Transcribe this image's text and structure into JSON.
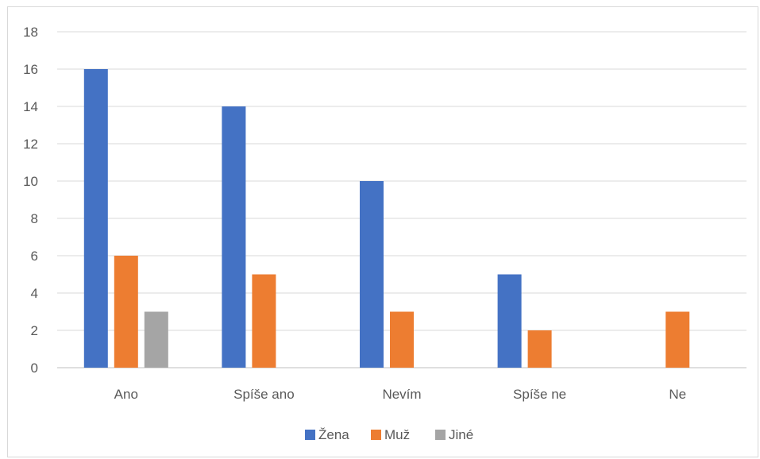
{
  "chart_data": {
    "type": "bar",
    "categories": [
      "Ano",
      "Spíše ano",
      "Nevím",
      "Spíše ne",
      "Ne"
    ],
    "series": [
      {
        "name": "Žena",
        "color": "#4472C4",
        "values": [
          16,
          14,
          10,
          5,
          0
        ]
      },
      {
        "name": "Muž",
        "color": "#ED7D31",
        "values": [
          6,
          5,
          3,
          2,
          3
        ]
      },
      {
        "name": "Jiné",
        "color": "#A5A5A5",
        "values": [
          3,
          0,
          0,
          0,
          0
        ]
      }
    ],
    "y_ticks": [
      "0",
      "2",
      "4",
      "6",
      "8",
      "10",
      "12",
      "14",
      "16",
      "18"
    ],
    "ylim": [
      0,
      18
    ],
    "grid": true,
    "legend": "bottom"
  }
}
